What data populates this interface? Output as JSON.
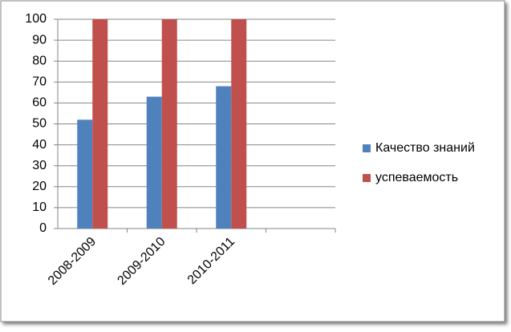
{
  "chart_data": {
    "type": "bar",
    "categories": [
      "2008-2009",
      "2009-2010",
      "2010-2011",
      null
    ],
    "series": [
      {
        "name": "Качество знаний",
        "color": "#4f81bd",
        "values": [
          52,
          63,
          68,
          null
        ]
      },
      {
        "name": "успеваемость",
        "color": "#c0504d",
        "values": [
          100,
          100,
          100,
          null
        ]
      }
    ],
    "ylim": [
      0,
      100
    ],
    "yticks": [
      0,
      10,
      20,
      30,
      40,
      50,
      60,
      70,
      80,
      90,
      100
    ],
    "grid": true,
    "legend": "right"
  }
}
